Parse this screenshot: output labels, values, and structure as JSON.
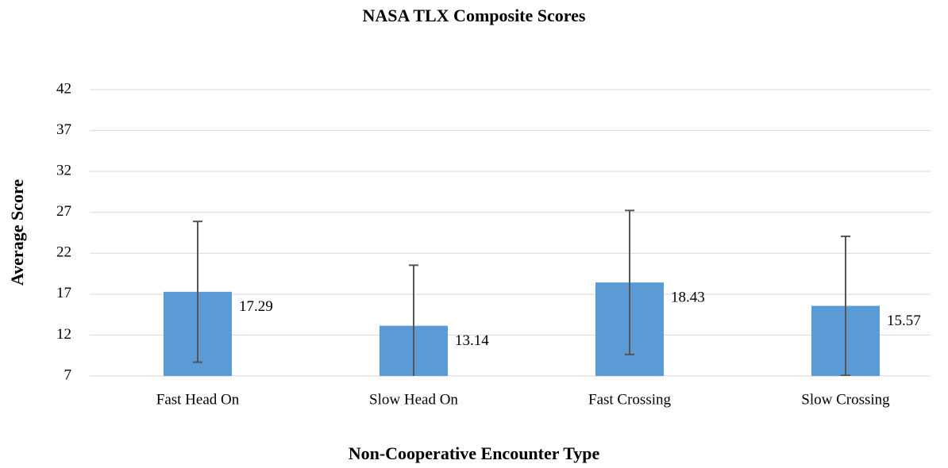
{
  "chart_data": {
    "type": "bar",
    "title": "NASA TLX Composite Scores",
    "x_label": "Non-Cooperative Encounter Type",
    "y_label": "Average Score",
    "categories": [
      "Fast Head On",
      "Slow Head On",
      "Fast Crossing",
      "Slow Crossing"
    ],
    "values": [
      17.29,
      13.14,
      18.43,
      15.57
    ],
    "errors": [
      8.6,
      7.4,
      8.8,
      8.5
    ],
    "color": "#5b9bd5",
    "error_color": "#555555",
    "ylim": [
      7,
      42
    ],
    "yticks": [
      7,
      12,
      17,
      22,
      27,
      32,
      37,
      42
    ],
    "grid": true
  }
}
